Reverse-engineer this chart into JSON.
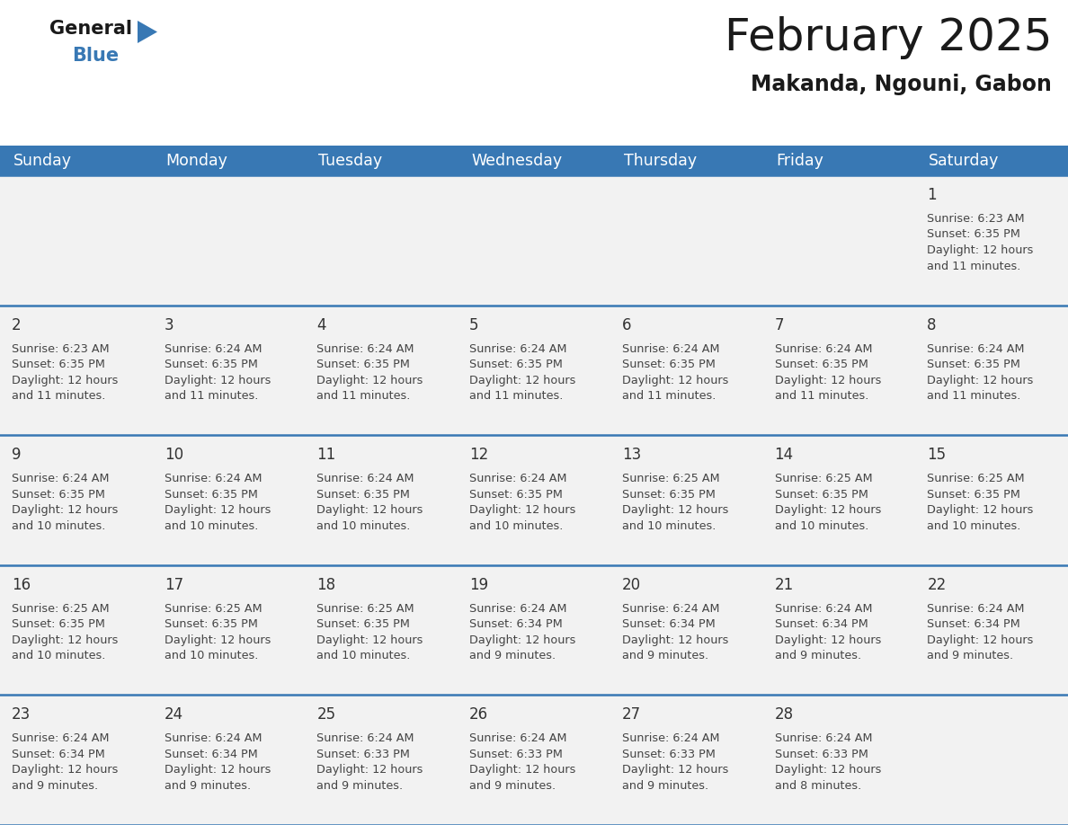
{
  "title": "February 2025",
  "subtitle": "Makanda, Ngouni, Gabon",
  "header_bg_color": "#3878b4",
  "header_text_color": "#ffffff",
  "cell_bg_color": "#f2f2f2",
  "grid_line_color": "#3878b4",
  "day_number_color": "#333333",
  "cell_text_color": "#444444",
  "weekdays": [
    "Sunday",
    "Monday",
    "Tuesday",
    "Wednesday",
    "Thursday",
    "Friday",
    "Saturday"
  ],
  "days": [
    {
      "day": 1,
      "col": 6,
      "row": 0,
      "sunrise": "6:23 AM",
      "sunset": "6:35 PM",
      "daylight": "12 hours and 11 minutes."
    },
    {
      "day": 2,
      "col": 0,
      "row": 1,
      "sunrise": "6:23 AM",
      "sunset": "6:35 PM",
      "daylight": "12 hours and 11 minutes."
    },
    {
      "day": 3,
      "col": 1,
      "row": 1,
      "sunrise": "6:24 AM",
      "sunset": "6:35 PM",
      "daylight": "12 hours and 11 minutes."
    },
    {
      "day": 4,
      "col": 2,
      "row": 1,
      "sunrise": "6:24 AM",
      "sunset": "6:35 PM",
      "daylight": "12 hours and 11 minutes."
    },
    {
      "day": 5,
      "col": 3,
      "row": 1,
      "sunrise": "6:24 AM",
      "sunset": "6:35 PM",
      "daylight": "12 hours and 11 minutes."
    },
    {
      "day": 6,
      "col": 4,
      "row": 1,
      "sunrise": "6:24 AM",
      "sunset": "6:35 PM",
      "daylight": "12 hours and 11 minutes."
    },
    {
      "day": 7,
      "col": 5,
      "row": 1,
      "sunrise": "6:24 AM",
      "sunset": "6:35 PM",
      "daylight": "12 hours and 11 minutes."
    },
    {
      "day": 8,
      "col": 6,
      "row": 1,
      "sunrise": "6:24 AM",
      "sunset": "6:35 PM",
      "daylight": "12 hours and 11 minutes."
    },
    {
      "day": 9,
      "col": 0,
      "row": 2,
      "sunrise": "6:24 AM",
      "sunset": "6:35 PM",
      "daylight": "12 hours and 10 minutes."
    },
    {
      "day": 10,
      "col": 1,
      "row": 2,
      "sunrise": "6:24 AM",
      "sunset": "6:35 PM",
      "daylight": "12 hours and 10 minutes."
    },
    {
      "day": 11,
      "col": 2,
      "row": 2,
      "sunrise": "6:24 AM",
      "sunset": "6:35 PM",
      "daylight": "12 hours and 10 minutes."
    },
    {
      "day": 12,
      "col": 3,
      "row": 2,
      "sunrise": "6:24 AM",
      "sunset": "6:35 PM",
      "daylight": "12 hours and 10 minutes."
    },
    {
      "day": 13,
      "col": 4,
      "row": 2,
      "sunrise": "6:25 AM",
      "sunset": "6:35 PM",
      "daylight": "12 hours and 10 minutes."
    },
    {
      "day": 14,
      "col": 5,
      "row": 2,
      "sunrise": "6:25 AM",
      "sunset": "6:35 PM",
      "daylight": "12 hours and 10 minutes."
    },
    {
      "day": 15,
      "col": 6,
      "row": 2,
      "sunrise": "6:25 AM",
      "sunset": "6:35 PM",
      "daylight": "12 hours and 10 minutes."
    },
    {
      "day": 16,
      "col": 0,
      "row": 3,
      "sunrise": "6:25 AM",
      "sunset": "6:35 PM",
      "daylight": "12 hours and 10 minutes."
    },
    {
      "day": 17,
      "col": 1,
      "row": 3,
      "sunrise": "6:25 AM",
      "sunset": "6:35 PM",
      "daylight": "12 hours and 10 minutes."
    },
    {
      "day": 18,
      "col": 2,
      "row": 3,
      "sunrise": "6:25 AM",
      "sunset": "6:35 PM",
      "daylight": "12 hours and 10 minutes."
    },
    {
      "day": 19,
      "col": 3,
      "row": 3,
      "sunrise": "6:24 AM",
      "sunset": "6:34 PM",
      "daylight": "12 hours and 9 minutes."
    },
    {
      "day": 20,
      "col": 4,
      "row": 3,
      "sunrise": "6:24 AM",
      "sunset": "6:34 PM",
      "daylight": "12 hours and 9 minutes."
    },
    {
      "day": 21,
      "col": 5,
      "row": 3,
      "sunrise": "6:24 AM",
      "sunset": "6:34 PM",
      "daylight": "12 hours and 9 minutes."
    },
    {
      "day": 22,
      "col": 6,
      "row": 3,
      "sunrise": "6:24 AM",
      "sunset": "6:34 PM",
      "daylight": "12 hours and 9 minutes."
    },
    {
      "day": 23,
      "col": 0,
      "row": 4,
      "sunrise": "6:24 AM",
      "sunset": "6:34 PM",
      "daylight": "12 hours and 9 minutes."
    },
    {
      "day": 24,
      "col": 1,
      "row": 4,
      "sunrise": "6:24 AM",
      "sunset": "6:34 PM",
      "daylight": "12 hours and 9 minutes."
    },
    {
      "day": 25,
      "col": 2,
      "row": 4,
      "sunrise": "6:24 AM",
      "sunset": "6:33 PM",
      "daylight": "12 hours and 9 minutes."
    },
    {
      "day": 26,
      "col": 3,
      "row": 4,
      "sunrise": "6:24 AM",
      "sunset": "6:33 PM",
      "daylight": "12 hours and 9 minutes."
    },
    {
      "day": 27,
      "col": 4,
      "row": 4,
      "sunrise": "6:24 AM",
      "sunset": "6:33 PM",
      "daylight": "12 hours and 9 minutes."
    },
    {
      "day": 28,
      "col": 5,
      "row": 4,
      "sunrise": "6:24 AM",
      "sunset": "6:33 PM",
      "daylight": "12 hours and 8 minutes."
    }
  ],
  "logo_general_color": "#1a1a1a",
  "logo_blue_color": "#3878b4",
  "logo_triangle_color": "#3878b4"
}
